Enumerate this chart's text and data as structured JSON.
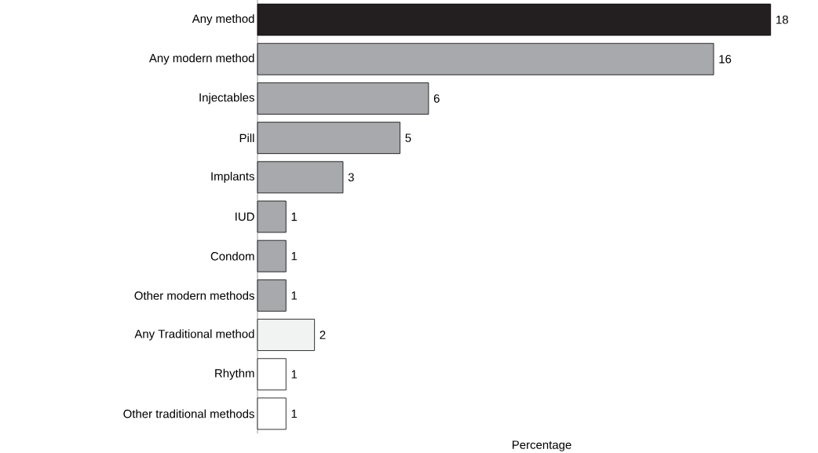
{
  "chart_data": {
    "type": "bar",
    "orientation": "horizontal",
    "xlabel": "Percentage",
    "categories": [
      "Any method",
      "Any modern method",
      "Injectables",
      "Pill",
      "Implants",
      "IUD",
      "Condom",
      "Other modern methods",
      "Any Traditional method",
      "Rhythm",
      "Other traditional methods"
    ],
    "values": [
      18,
      16,
      6,
      5,
      3,
      1,
      1,
      1,
      2,
      1,
      1
    ],
    "colors": [
      "#231f20",
      "#a7a9ac",
      "#a7a9ac",
      "#a7a9ac",
      "#a7a9ac",
      "#a7a9ac",
      "#a7a9ac",
      "#a7a9ac",
      "#f1f2f2",
      "#ffffff",
      "#ffffff"
    ],
    "data_labels": true
  }
}
